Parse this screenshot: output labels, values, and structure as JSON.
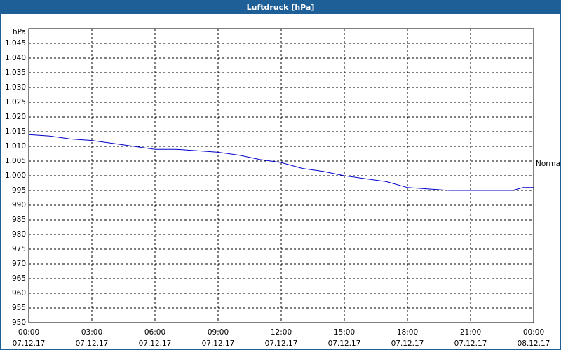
{
  "chart_data": {
    "type": "line",
    "title": "Luftdruck [hPa]",
    "y_label": "hPa",
    "x": [
      0,
      1,
      2,
      3,
      4,
      5,
      6,
      7,
      8,
      9,
      10,
      11,
      12,
      13,
      14,
      15,
      16,
      17,
      18,
      19,
      20,
      21,
      22,
      23,
      23.5,
      24
    ],
    "series": [
      {
        "color": "#0000c8",
        "values": [
          1014,
          1013.5,
          1012.5,
          1012,
          1011,
          1010,
          1009,
          1009,
          1008.5,
          1008,
          1007,
          1005.5,
          1004.5,
          1002.5,
          1001.5,
          1000,
          999,
          998,
          996,
          995.5,
          995,
          995,
          995,
          995,
          996,
          996
        ]
      }
    ],
    "xlim": [
      0,
      24
    ],
    "xticks": [
      {
        "value": 0,
        "label": "00:00",
        "date": "07.12.17"
      },
      {
        "value": 3,
        "label": "03:00",
        "date": "07.12.17"
      },
      {
        "value": 6,
        "label": "06:00",
        "date": "07.12.17"
      },
      {
        "value": 9,
        "label": "09:00",
        "date": "07.12.17"
      },
      {
        "value": 12,
        "label": "12:00",
        "date": "07.12.17"
      },
      {
        "value": 15,
        "label": "15:00",
        "date": "07.12.17"
      },
      {
        "value": 18,
        "label": "18:00",
        "date": "07.12.17"
      },
      {
        "value": 21,
        "label": "21:00",
        "date": "07.12.17"
      },
      {
        "value": 24,
        "label": "00:00",
        "date": "08.12.17"
      }
    ],
    "ylim": [
      950,
      1050
    ],
    "yticks": [
      950,
      955,
      960,
      965,
      970,
      975,
      980,
      985,
      990,
      995,
      {
        "value": 1000,
        "label": "1.000"
      },
      {
        "value": 1005,
        "label": "1.005"
      },
      {
        "value": 1010,
        "label": "1.010"
      },
      {
        "value": 1015,
        "label": "1.015"
      },
      {
        "value": 1020,
        "label": "1.020"
      },
      {
        "value": 1025,
        "label": "1.025"
      },
      {
        "value": 1030,
        "label": "1.030"
      },
      {
        "value": 1035,
        "label": "1.035"
      },
      {
        "value": 1040,
        "label": "1.040"
      },
      {
        "value": 1045,
        "label": "1.045"
      }
    ],
    "annotation": {
      "text": "Normal",
      "value": 1004
    },
    "grid": true
  }
}
